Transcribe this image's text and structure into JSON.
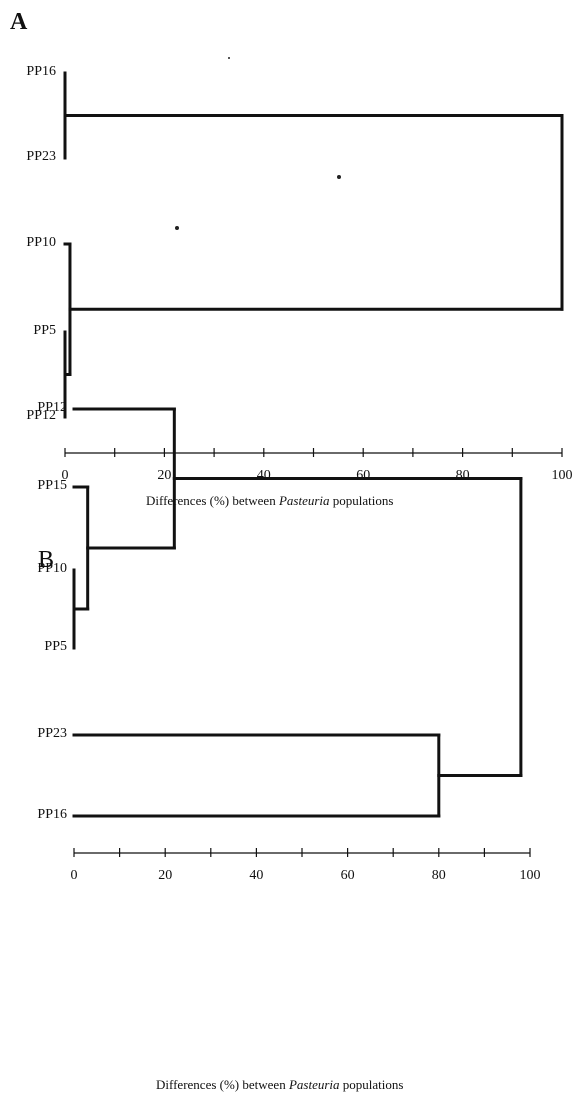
{
  "panels": [
    {
      "letter": "A",
      "axis_title_prefix": "Differences (%) between ",
      "axis_title_italic": "Pasteuria",
      "axis_title_suffix": " populations"
    },
    {
      "letter": "B",
      "axis_title_prefix": "Differences (%) between ",
      "axis_title_italic": "Pasteuria",
      "axis_title_suffix": " populations"
    }
  ],
  "chart_data": [
    {
      "type": "dendrogram",
      "title": "A",
      "xlabel": "Differences (%) between Pasteuria populations",
      "xlim": [
        0,
        100
      ],
      "xticks": [
        0,
        20,
        40,
        60,
        80,
        100
      ],
      "leaves": [
        "PP16",
        "PP23",
        "PP10",
        "PP5",
        "PP12"
      ],
      "merges": [
        {
          "id": "m1",
          "left": "PP16",
          "right": "PP23",
          "height": 0
        },
        {
          "id": "m2",
          "left": "PP5",
          "right": "PP12",
          "height": 0
        },
        {
          "id": "m3",
          "left": "PP10",
          "right": "m2",
          "height": 1
        },
        {
          "id": "m4",
          "left": "m1",
          "right": "m3",
          "height": 100
        }
      ]
    },
    {
      "type": "dendrogram",
      "title": "B",
      "xlabel": "Differences (%) between Pasteuria populations",
      "xlim": [
        0,
        100
      ],
      "xticks": [
        0,
        20,
        40,
        60,
        80,
        100
      ],
      "leaves": [
        "PP12",
        "PP15",
        "PP10",
        "PP5",
        "PP23",
        "PP16"
      ],
      "merges": [
        {
          "id": "m1",
          "left": "PP10",
          "right": "PP5",
          "height": 0
        },
        {
          "id": "m2",
          "left": "PP15",
          "right": "m1",
          "height": 3
        },
        {
          "id": "m3",
          "left": "PP12",
          "right": "m2",
          "height": 22
        },
        {
          "id": "m4",
          "left": "PP23",
          "right": "PP16",
          "height": 80
        },
        {
          "id": "m5",
          "left": "m3",
          "right": "m4",
          "height": 98
        }
      ]
    }
  ]
}
